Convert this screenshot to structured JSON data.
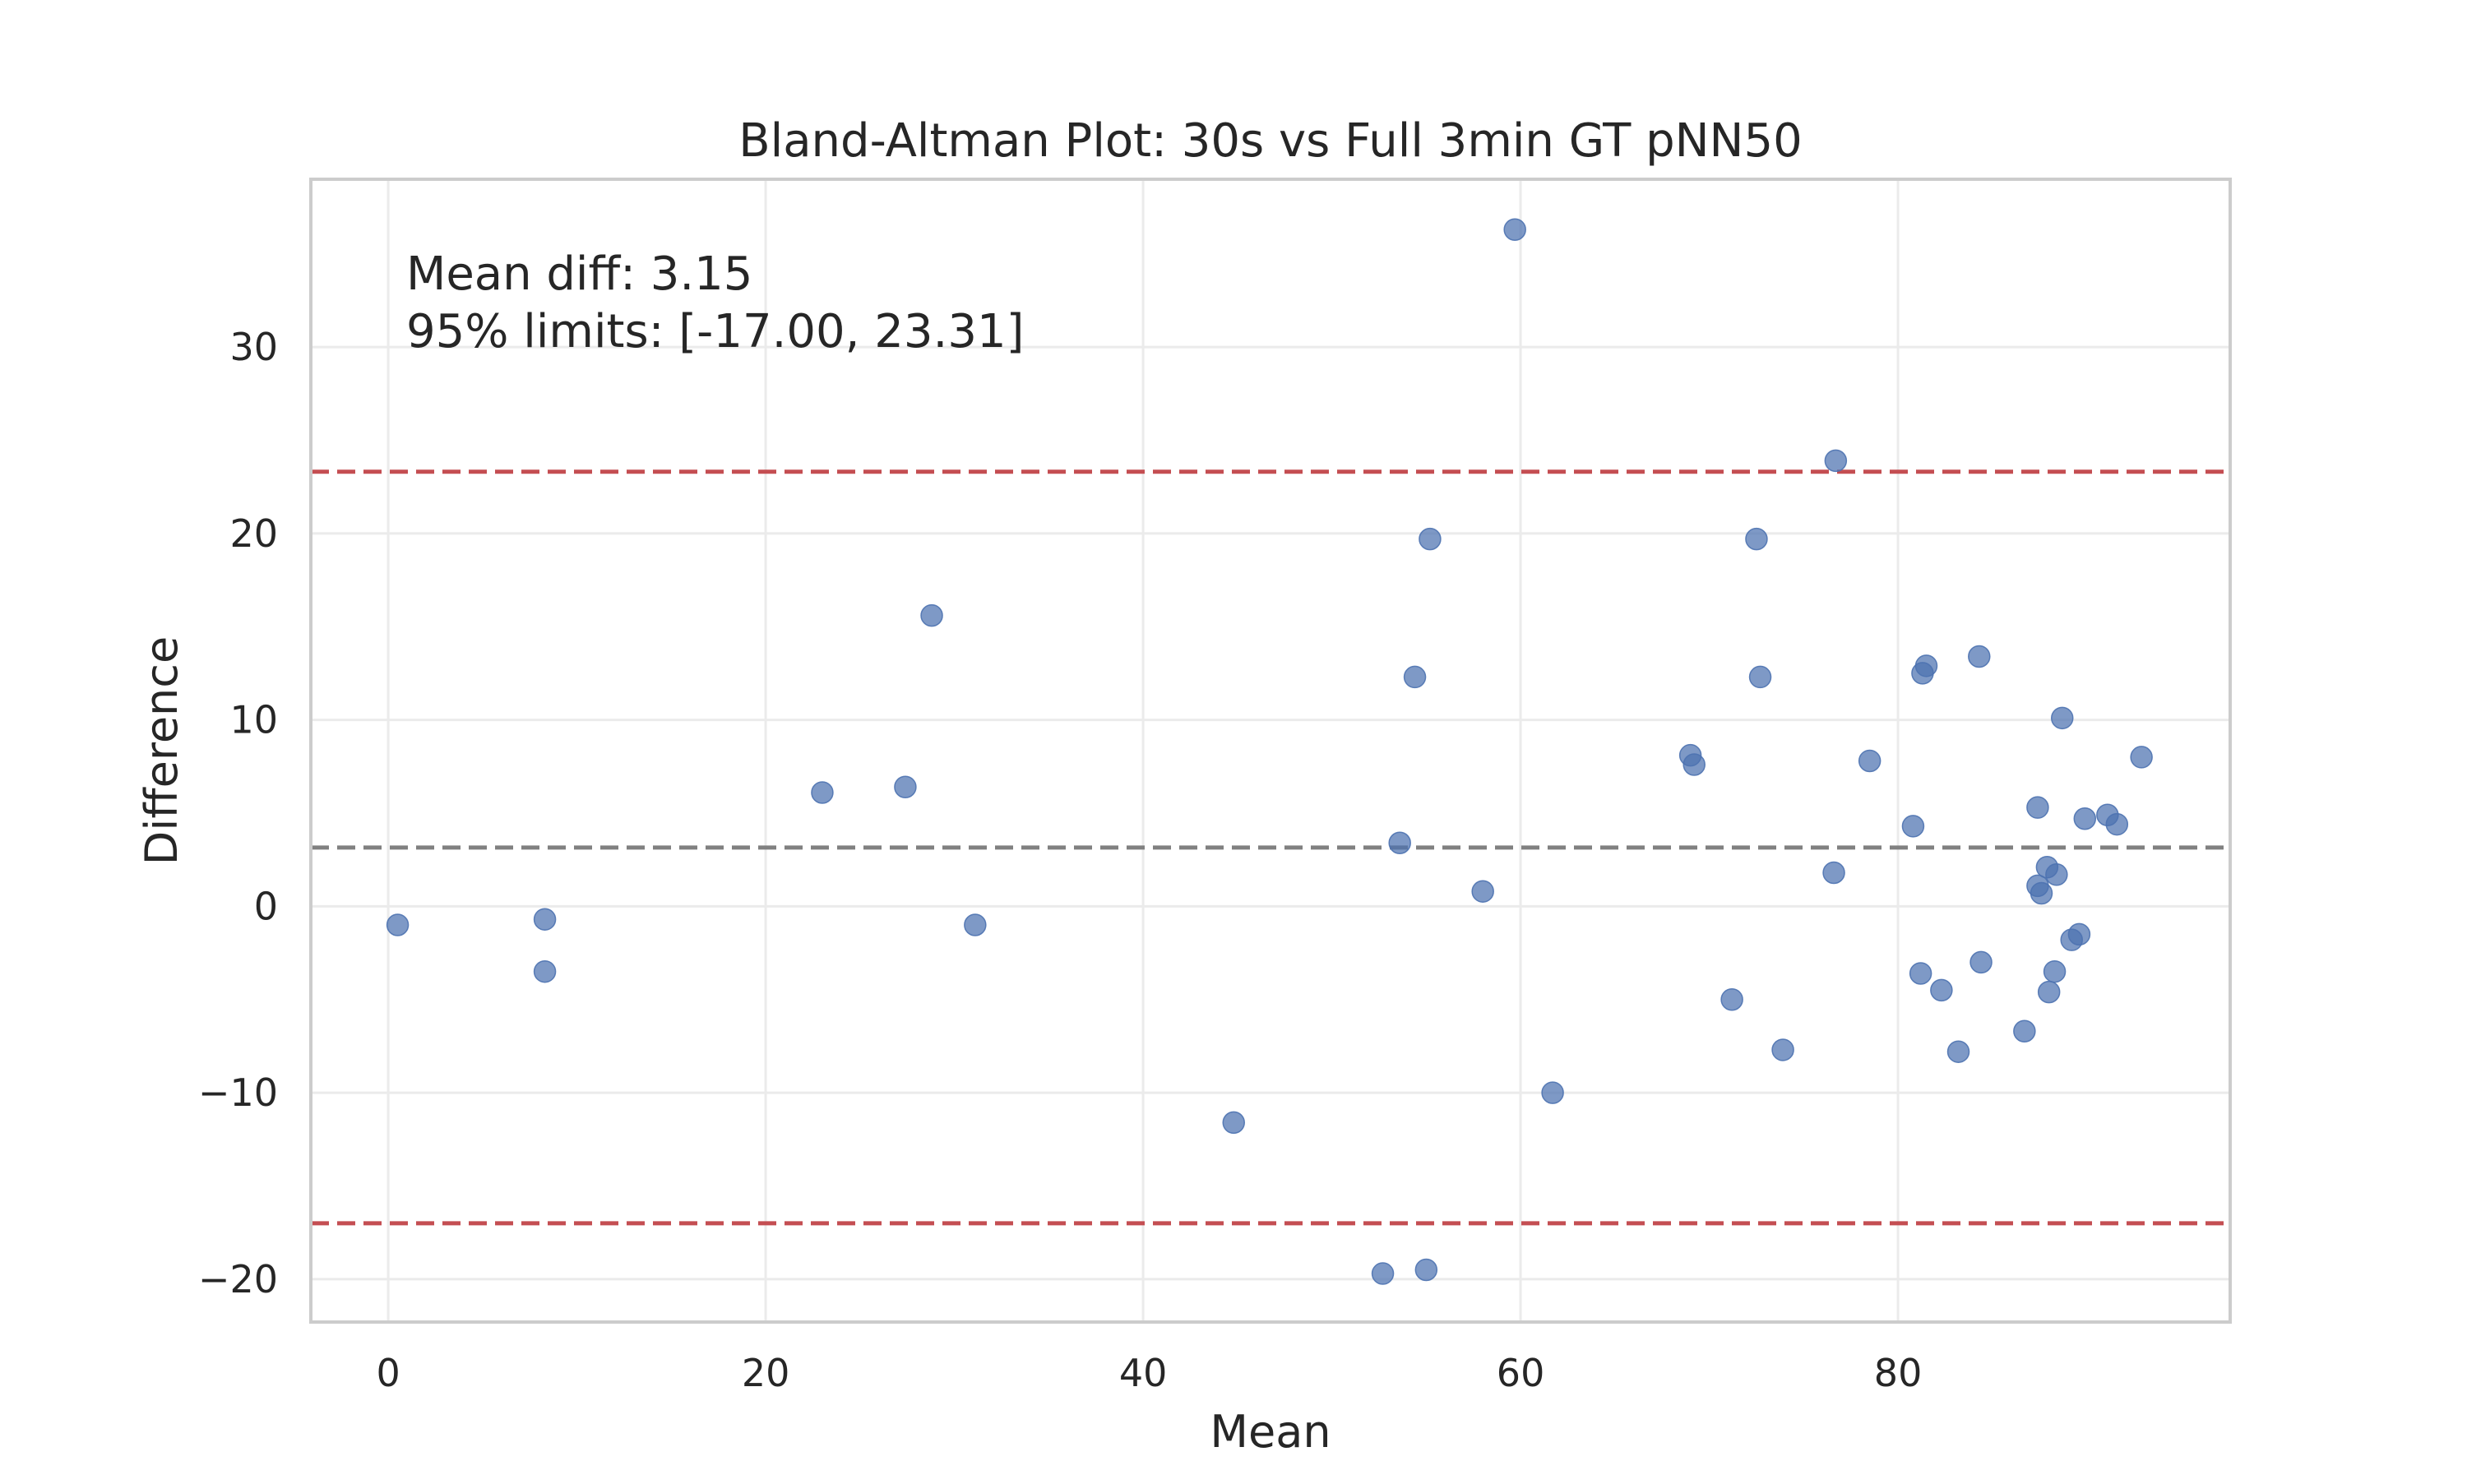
{
  "chart_data": {
    "type": "scatter",
    "title": "Bland-Altman Plot: 30s vs Full 3min GT pNN50",
    "xlabel": "Mean",
    "ylabel": "Difference",
    "xlim": [
      -4.1,
      97.6
    ],
    "ylim": [
      -22.3,
      39.0
    ],
    "xticks": [
      0,
      20,
      40,
      60,
      80
    ],
    "yticks": [
      -20,
      -10,
      0,
      10,
      20,
      30
    ],
    "grid": true,
    "annotations": [
      "Mean diff: 3.15",
      "95% limits: [-17.00, 23.31]"
    ],
    "reference_lines": [
      {
        "value": 3.15,
        "color": "#808080",
        "style": "dashed"
      },
      {
        "value": 23.31,
        "color": "#c44e52",
        "style": "dashed"
      },
      {
        "value": -17.0,
        "color": "#c44e52",
        "style": "dashed"
      }
    ],
    "point_color": "#4c72b0",
    "points": [
      {
        "x": 0.5,
        "y": -1.0
      },
      {
        "x": 8.3,
        "y": -0.7
      },
      {
        "x": 8.3,
        "y": -3.5
      },
      {
        "x": 23.0,
        "y": 6.1
      },
      {
        "x": 27.4,
        "y": 6.4
      },
      {
        "x": 28.8,
        "y": 15.6
      },
      {
        "x": 31.1,
        "y": -1.0
      },
      {
        "x": 44.8,
        "y": -11.6
      },
      {
        "x": 52.7,
        "y": -19.7
      },
      {
        "x": 53.6,
        "y": 3.4
      },
      {
        "x": 54.4,
        "y": 12.3
      },
      {
        "x": 55.0,
        "y": -19.5
      },
      {
        "x": 55.2,
        "y": 19.7
      },
      {
        "x": 58.0,
        "y": 0.8
      },
      {
        "x": 59.7,
        "y": 36.3
      },
      {
        "x": 61.7,
        "y": -10.0
      },
      {
        "x": 69.0,
        "y": 8.1
      },
      {
        "x": 69.2,
        "y": 7.6
      },
      {
        "x": 71.2,
        "y": -5.0
      },
      {
        "x": 72.5,
        "y": 19.7
      },
      {
        "x": 72.7,
        "y": 12.3
      },
      {
        "x": 73.9,
        "y": -7.7
      },
      {
        "x": 76.6,
        "y": 1.8
      },
      {
        "x": 76.7,
        "y": 23.9
      },
      {
        "x": 78.5,
        "y": 7.8
      },
      {
        "x": 80.8,
        "y": 4.3
      },
      {
        "x": 81.2,
        "y": -3.6
      },
      {
        "x": 81.3,
        "y": 12.5
      },
      {
        "x": 81.5,
        "y": 12.9
      },
      {
        "x": 82.3,
        "y": -4.5
      },
      {
        "x": 83.2,
        "y": -7.8
      },
      {
        "x": 84.3,
        "y": 13.4
      },
      {
        "x": 84.4,
        "y": -3.0
      },
      {
        "x": 86.7,
        "y": -6.7
      },
      {
        "x": 87.4,
        "y": 5.3
      },
      {
        "x": 87.4,
        "y": 1.1
      },
      {
        "x": 87.6,
        "y": 0.7
      },
      {
        "x": 87.9,
        "y": 2.1
      },
      {
        "x": 88.0,
        "y": -4.6
      },
      {
        "x": 88.3,
        "y": -3.5
      },
      {
        "x": 88.4,
        "y": 1.7
      },
      {
        "x": 88.7,
        "y": 10.1
      },
      {
        "x": 89.2,
        "y": -1.8
      },
      {
        "x": 89.6,
        "y": -1.5
      },
      {
        "x": 89.9,
        "y": 4.7
      },
      {
        "x": 91.1,
        "y": 4.9
      },
      {
        "x": 91.6,
        "y": 4.4
      },
      {
        "x": 92.9,
        "y": 8.0
      }
    ]
  }
}
